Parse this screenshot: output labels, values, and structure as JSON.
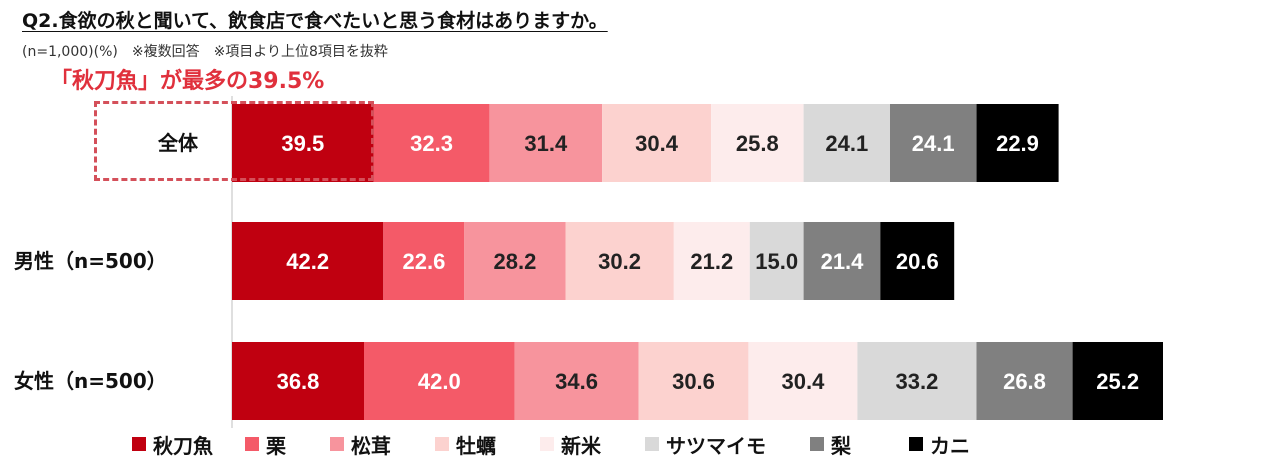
{
  "title": "Q2.食欲の秋と聞いて、飲食店で食べたいと思う食材はありますか。",
  "subtitle": "(n=1,000)(%)　※複数回答　※項目より上位8項目を抜粋",
  "highlight": "「秋刀魚」が最多の39.5%",
  "chart_data": {
    "type": "bar",
    "orientation": "horizontal",
    "stacked": true,
    "categories": [
      "全体",
      "男性（n=500）",
      "女性（n=500）"
    ],
    "series": [
      {
        "name": "秋刀魚",
        "color": "#c00010",
        "text_color": "#ffffff",
        "values": [
          39.5,
          42.2,
          36.8
        ]
      },
      {
        "name": "栗",
        "color": "#f45a68",
        "text_color": "#ffffff",
        "values": [
          32.3,
          22.6,
          42.0
        ]
      },
      {
        "name": "松茸",
        "color": "#f7949d",
        "text_color": "#222222",
        "values": [
          31.4,
          28.2,
          34.6
        ]
      },
      {
        "name": "牡蠣",
        "color": "#fcd2cf",
        "text_color": "#222222",
        "values": [
          30.4,
          30.2,
          30.6
        ]
      },
      {
        "name": "新米",
        "color": "#fdecec",
        "text_color": "#222222",
        "values": [
          25.8,
          21.2,
          30.4
        ]
      },
      {
        "name": "サツマイモ",
        "color": "#d9d9d9",
        "text_color": "#222222",
        "values": [
          24.1,
          15.0,
          33.2
        ]
      },
      {
        "name": "梨",
        "color": "#808080",
        "text_color": "#ffffff",
        "values": [
          24.1,
          21.4,
          26.8
        ]
      },
      {
        "name": "カニ",
        "color": "#000000",
        "text_color": "#ffffff",
        "values": [
          22.9,
          20.6,
          25.2
        ]
      }
    ],
    "data_labels": true,
    "grid": false,
    "legend_position": "bottom"
  }
}
